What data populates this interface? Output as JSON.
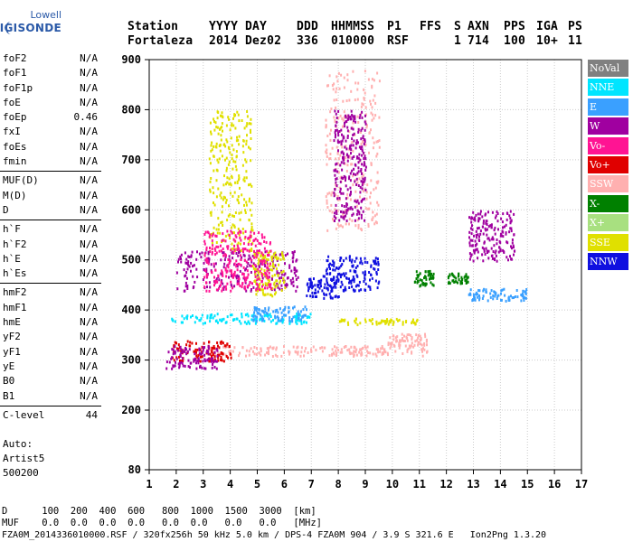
{
  "logo": {
    "line1": "Lowell",
    "line2": "DIGISONDE"
  },
  "header": {
    "labels": [
      {
        "text": "Station",
        "col": 0
      },
      {
        "text": "YYYY",
        "col": 1
      },
      {
        "text": "DAY",
        "col": 2
      },
      {
        "text": "DDD",
        "col": 3
      },
      {
        "text": "HHMMSS",
        "col": 4
      },
      {
        "text": "P1",
        "col": 5
      },
      {
        "text": "FFS",
        "col": 6
      },
      {
        "text": "S",
        "col": 7
      },
      {
        "text": "AXN",
        "col": 8
      },
      {
        "text": "PPS",
        "col": 9
      },
      {
        "text": "IGA",
        "col": 10
      },
      {
        "text": "PS",
        "col": 11
      }
    ],
    "values": [
      {
        "text": "Fortaleza",
        "col": 0
      },
      {
        "text": "2014",
        "col": 1
      },
      {
        "text": "Dez02",
        "col": 2
      },
      {
        "text": "336",
        "col": 3
      },
      {
        "text": "010000",
        "col": 4
      },
      {
        "text": "RSF",
        "col": 5
      },
      {
        "text": "",
        "col": 6
      },
      {
        "text": "1",
        "col": 7
      },
      {
        "text": "714",
        "col": 8
      },
      {
        "text": "100",
        "col": 9
      },
      {
        "text": "10+",
        "col": 10
      },
      {
        "text": "11",
        "col": 11
      }
    ]
  },
  "params": [
    [
      {
        "name": "foF2",
        "value": "N/A"
      },
      {
        "name": "foF1",
        "value": "N/A"
      },
      {
        "name": "foF1p",
        "value": "N/A"
      },
      {
        "name": "foE",
        "value": "N/A"
      },
      {
        "name": "foEp",
        "value": "0.46"
      },
      {
        "name": "fxI",
        "value": "N/A"
      },
      {
        "name": "foEs",
        "value": "N/A"
      },
      {
        "name": "fmin",
        "value": "N/A"
      }
    ],
    [
      {
        "name": "MUF(D)",
        "value": "N/A"
      },
      {
        "name": "M(D)",
        "value": "N/A"
      },
      {
        "name": "D",
        "value": "N/A"
      }
    ],
    [
      {
        "name": "h`F",
        "value": "N/A"
      },
      {
        "name": "h`F2",
        "value": "N/A"
      },
      {
        "name": "h`E",
        "value": "N/A"
      },
      {
        "name": "h`Es",
        "value": "N/A"
      }
    ],
    [
      {
        "name": "hmF2",
        "value": "N/A"
      },
      {
        "name": "hmF1",
        "value": "N/A"
      },
      {
        "name": "hmE",
        "value": "N/A"
      },
      {
        "name": "yF2",
        "value": "N/A"
      },
      {
        "name": "yF1",
        "value": "N/A"
      },
      {
        "name": "yE",
        "value": "N/A"
      },
      {
        "name": "B0",
        "value": "N/A"
      },
      {
        "name": "B1",
        "value": "N/A"
      }
    ],
    [
      {
        "name": "C-level",
        "value": "44"
      }
    ]
  ],
  "auto": {
    "line1": "Auto:",
    "line2": "Artist5",
    "line3": "500200"
  },
  "legend": [
    {
      "label": "NoVal",
      "color": "#808080"
    },
    {
      "label": "NNE",
      "color": "#00e5ff"
    },
    {
      "label": "E",
      "color": "#3aa0ff"
    },
    {
      "label": "W",
      "color": "#a000a0"
    },
    {
      "label": "Vo-",
      "color": "#ff1493"
    },
    {
      "label": "Vo+",
      "color": "#e00000"
    },
    {
      "label": "SSW",
      "color": "#ffb0b0"
    },
    {
      "label": "X-",
      "color": "#008000"
    },
    {
      "label": "X+",
      "color": "#a8e080"
    },
    {
      "label": "SSE",
      "color": "#e0e000"
    },
    {
      "label": "NNW",
      "color": "#1010e0"
    }
  ],
  "chart_data": {
    "type": "scatter",
    "title": "",
    "xlabel": "",
    "ylabel": "",
    "xlim": [
      1,
      17
    ],
    "ylim": [
      80,
      900
    ],
    "x_ticks": [
      "1",
      "2",
      "3",
      "4",
      "5",
      "6",
      "7",
      "8",
      "9",
      "10",
      "11",
      "12",
      "13",
      "14",
      "15",
      "16",
      "17"
    ],
    "y_ticks": [
      "80",
      "200",
      "300",
      "400",
      "500",
      "600",
      "700",
      "800",
      "900"
    ],
    "y_tick_values": [
      80,
      200,
      300,
      400,
      500,
      600,
      700,
      800,
      900
    ],
    "grid": true,
    "clusters": [
      {
        "series": "SSW",
        "x": [
          3.0,
          11.3
        ],
        "y": [
          310,
          330
        ]
      },
      {
        "series": "SSW",
        "x": [
          9.8,
          11.3
        ],
        "y": [
          330,
          355
        ]
      },
      {
        "series": "NNE",
        "x": [
          1.8,
          7.0
        ],
        "y": [
          375,
          395
        ]
      },
      {
        "series": "E",
        "x": [
          4.8,
          6.8
        ],
        "y": [
          380,
          410
        ]
      },
      {
        "series": "SSE",
        "x": [
          8.0,
          11.0
        ],
        "y": [
          373,
          385
        ]
      },
      {
        "series": "E",
        "x": [
          12.8,
          15.0
        ],
        "y": [
          420,
          445
        ]
      },
      {
        "series": "Vo+",
        "x": [
          1.8,
          4.0
        ],
        "y": [
          300,
          340
        ]
      },
      {
        "series": "W",
        "x": [
          1.6,
          3.5
        ],
        "y": [
          285,
          330
        ]
      },
      {
        "series": "NNW",
        "x": [
          7.5,
          9.5
        ],
        "y": [
          440,
          510
        ]
      },
      {
        "series": "NNW",
        "x": [
          6.8,
          8.0
        ],
        "y": [
          425,
          470
        ]
      },
      {
        "series": "W",
        "x": [
          2.0,
          6.5
        ],
        "y": [
          440,
          520
        ]
      },
      {
        "series": "SSE",
        "x": [
          3.2,
          4.8
        ],
        "y": [
          520,
          800
        ]
      },
      {
        "series": "SSE",
        "x": [
          4.8,
          6.0
        ],
        "y": [
          430,
          520
        ]
      },
      {
        "series": "X-",
        "x": [
          10.8,
          11.5
        ],
        "y": [
          450,
          480
        ]
      },
      {
        "series": "X-",
        "x": [
          12.0,
          12.8
        ],
        "y": [
          455,
          475
        ]
      },
      {
        "series": "W",
        "x": [
          12.8,
          14.5
        ],
        "y": [
          500,
          600
        ]
      },
      {
        "series": "SSW",
        "x": [
          7.5,
          9.5
        ],
        "y": [
          560,
          880
        ]
      },
      {
        "series": "W",
        "x": [
          7.8,
          9.0
        ],
        "y": [
          580,
          800
        ]
      },
      {
        "series": "Vo-",
        "x": [
          3.0,
          5.5
        ],
        "y": [
          440,
          560
        ]
      }
    ]
  },
  "footer": {
    "row_d": "D      100  200  400  600   800  1000  1500  3000  [km]",
    "row_muf": "MUF    0.0  0.0  0.0  0.0   0.0  0.0   0.0   0.0   [MHz]",
    "row_file": "FZA0M_2014336010000.RSF / 320fx256h 50 kHz 5.0 km / DPS-4 FZA0M 904 / 3.9 S 321.6 E   Ion2Png 1.3.20"
  }
}
